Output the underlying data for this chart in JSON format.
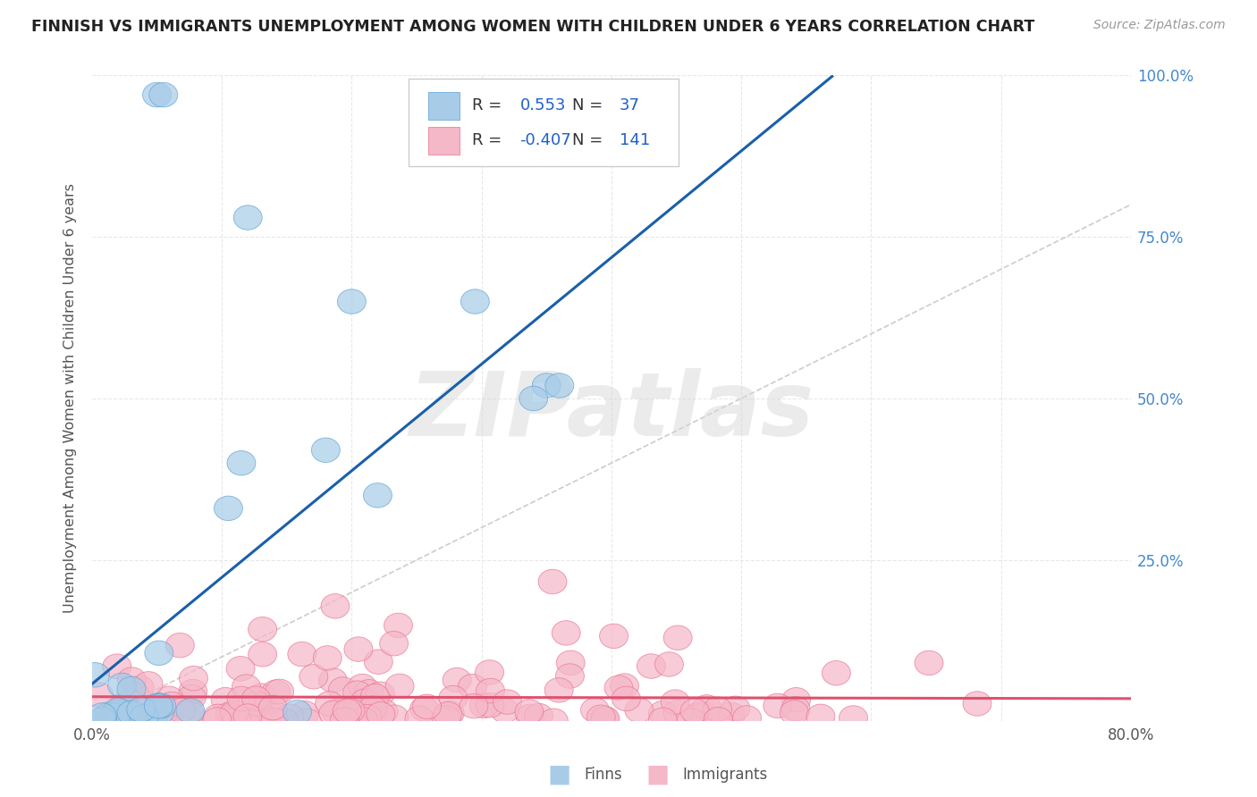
{
  "title": "FINNISH VS IMMIGRANTS UNEMPLOYMENT AMONG WOMEN WITH CHILDREN UNDER 6 YEARS CORRELATION CHART",
  "source": "Source: ZipAtlas.com",
  "ylabel": "Unemployment Among Women with Children Under 6 years",
  "xlim": [
    0.0,
    0.8
  ],
  "ylim": [
    0.0,
    1.0
  ],
  "finns_color": "#a8cce8",
  "immigrants_color": "#f5b8c8",
  "finns_edge_color": "#5a9fd4",
  "immigrants_edge_color": "#e87090",
  "finns_line_color": "#1a5faa",
  "immigrants_line_color": "#e05070",
  "legend_r_finns": "0.553",
  "legend_n_finns": "37",
  "legend_r_imm": "-0.407",
  "legend_n_imm": "141",
  "watermark": "ZIPatlas",
  "background_color": "#ffffff",
  "grid_color": "#e8e8e8",
  "value_color": "#2060cc",
  "diag_color": "#cccccc",
  "title_color": "#222222",
  "label_color": "#555555",
  "right_tick_color": "#4488cc"
}
